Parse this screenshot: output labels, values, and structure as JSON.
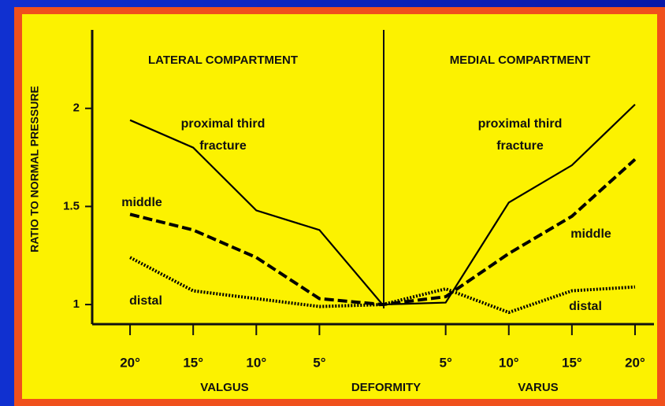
{
  "chart_data": {
    "type": "line",
    "ylabel": "RATIO TO NORMAL PRESSURE",
    "sections": [
      "LATERAL COMPARTMENT",
      "MEDIAL COMPARTMENT"
    ],
    "xlabels": [
      "VALGUS",
      "DEFORMITY",
      "VARUS"
    ],
    "x": [
      -20,
      -15,
      -10,
      -5,
      0,
      5,
      10,
      15,
      20
    ],
    "series": [
      {
        "name": "proximal third fracture",
        "color": "#000000",
        "style": "solid",
        "values": [
          1.94,
          1.8,
          1.48,
          1.38,
          1.0,
          1.01,
          1.52,
          1.71,
          2.02
        ]
      },
      {
        "name": "middle",
        "color": "#000000",
        "style": "dashed",
        "values": [
          1.46,
          1.38,
          1.24,
          1.03,
          1.0,
          1.04,
          1.26,
          1.45,
          1.74
        ]
      },
      {
        "name": "distal",
        "color": "#000000",
        "style": "dotted",
        "values": [
          1.24,
          1.07,
          1.03,
          0.99,
          1.0,
          1.08,
          0.96,
          1.07,
          1.09
        ]
      }
    ],
    "xlim": [
      -23,
      21.5
    ],
    "xticks": [
      {
        "value": -20,
        "label": "20°"
      },
      {
        "value": -15,
        "label": "15°"
      },
      {
        "value": -10,
        "label": "10°"
      },
      {
        "value": -5,
        "label": "5°"
      },
      {
        "value": 5,
        "label": "5°"
      },
      {
        "value": 10,
        "label": "10°"
      },
      {
        "value": 15,
        "label": "15°"
      },
      {
        "value": 20,
        "label": "20°"
      }
    ],
    "ylim": [
      0.9,
      2.4
    ],
    "yticks": [
      1,
      1.5,
      2
    ],
    "grid": false
  }
}
